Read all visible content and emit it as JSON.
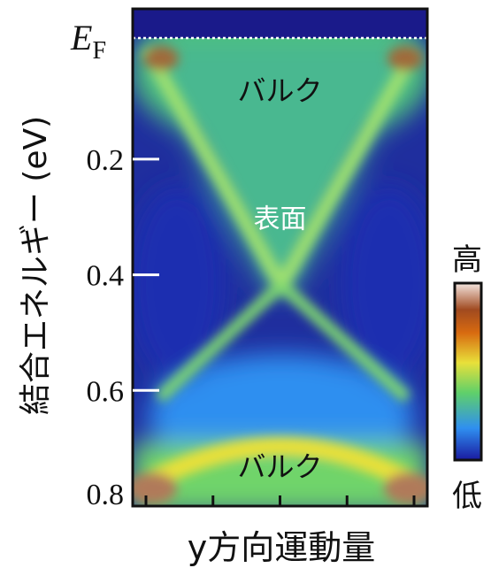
{
  "chart_data": {
    "type": "heatmap",
    "title": "",
    "xlabel": "y方向運動量",
    "ylabel": "結合エネルギー (eV)",
    "ylim": [
      0.8,
      -0.06
    ],
    "y_axis_inverted": true,
    "fermi_level_label": {
      "main": "E",
      "sub": "F"
    },
    "fermi_level_value": 0,
    "yticks": [
      {
        "value": 0.2,
        "label": "0.2"
      },
      {
        "value": 0.4,
        "label": "0.4"
      },
      {
        "value": 0.6,
        "label": "0.6"
      },
      {
        "value": 0.8,
        "label": "0.8"
      }
    ],
    "x_tick_count": 5,
    "features": [
      {
        "label": "バルク",
        "energy": 0.08,
        "kind": "bulk"
      },
      {
        "label": "表面",
        "energy": 0.3,
        "kind": "surface"
      },
      {
        "label": "バルク",
        "energy": 0.73,
        "kind": "bulk"
      }
    ],
    "dirac_point_energy": 0.43,
    "colorbar": {
      "high_label": "高",
      "low_label": "低",
      "colors": [
        "#1a1aa0",
        "#2f8ff0",
        "#5fd06a",
        "#e8e03a",
        "#d86a10",
        "#a04a20",
        "#f4e6e0"
      ]
    },
    "colors": {
      "background": "#1a2a9a",
      "low": "#2a3fd0",
      "mid": "#2f8ff0",
      "green": "#5fd06a",
      "yellow": "#e8e03a",
      "brown": "#a06a3a"
    }
  }
}
